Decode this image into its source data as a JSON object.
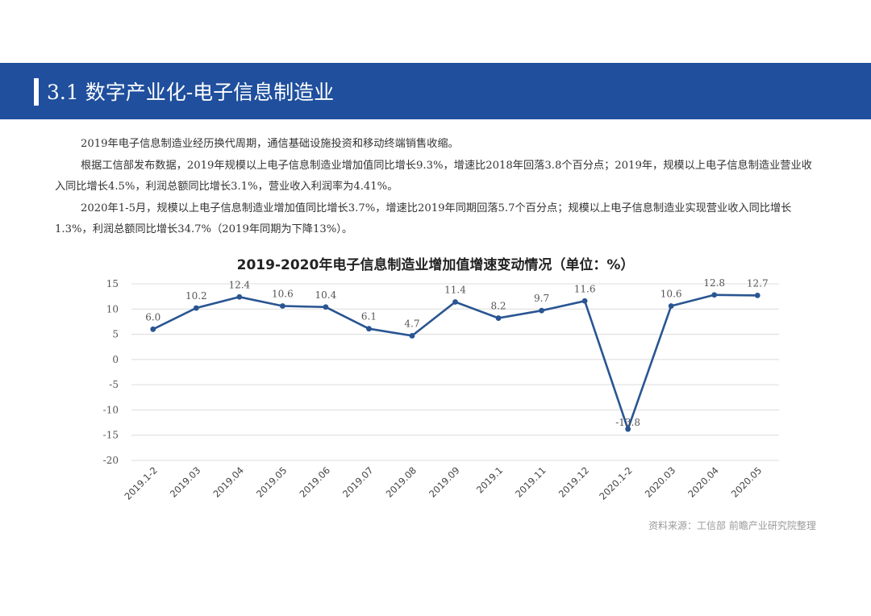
{
  "header": {
    "title": "3.1 数字产业化-电子信息制造业",
    "banner_color": "#1f4f9d"
  },
  "paragraphs": [
    "2019年电子信息制造业经历换代周期，通信基础设施投资和移动终端销售收缩。",
    "根据工信部发布数据，2019年规模以上电子信息制造业增加值同比增长9.3%，增速比2018年回落3.8个百分点；2019年，规模以上电子信息制造业营业收入同比增长4.5%，利润总额同比增长3.1%，营业收入利润率为4.41%。",
    "2020年1-5月，规模以上电子信息制造业增加值同比增长3.7%，增速比2019年同期回落5.7个百分点；规模以上电子信息制造业实现营业收入同比增长1.3%，利润总额同比增长34.7%（2019年同期为下降13%）。"
  ],
  "chart_data": {
    "type": "line",
    "title": "2019-2020年电子信息制造业增加值增速变动情况（单位：%）",
    "xlabel": "",
    "ylabel": "",
    "categories": [
      "2019.1-2",
      "2019.03",
      "2019.04",
      "2019.05",
      "2019.06",
      "2019.07",
      "2019.08",
      "2019.09",
      "2019.1",
      "2019.11",
      "2019.12",
      "2020.1-2",
      "2020.03",
      "2020.04",
      "2020.05"
    ],
    "values": [
      6.0,
      10.2,
      12.4,
      10.6,
      10.4,
      6.1,
      4.7,
      11.4,
      8.2,
      9.7,
      11.6,
      -13.8,
      10.6,
      12.8,
      12.7
    ],
    "data_labels": [
      "6.0",
      "10.2",
      "12.4",
      "10.6",
      "10.4",
      "6.1",
      "4.7",
      "11.4",
      "8.2",
      "9.7",
      "11.6",
      "-13.8",
      "10.6",
      "12.8",
      "12.7"
    ],
    "yticks": [
      15,
      10,
      5,
      0,
      -5,
      -10,
      -15,
      -20
    ],
    "ylim": [
      -20,
      15
    ],
    "grid": true,
    "legend": "none",
    "line_color": "#2a5592"
  },
  "source": "资料来源：工信部 前瞻产业研究院整理"
}
